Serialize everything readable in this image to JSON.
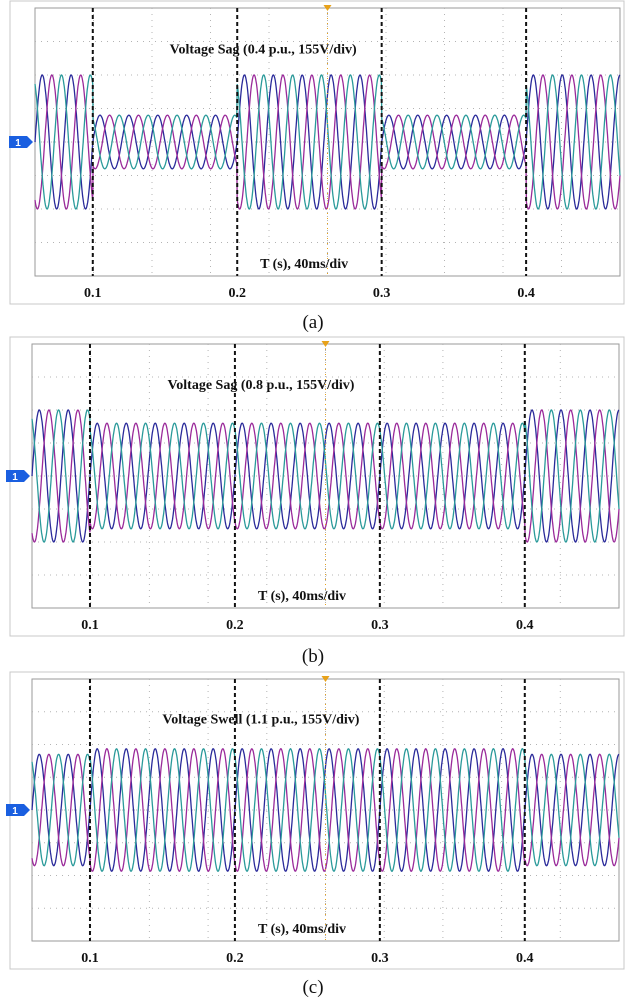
{
  "colors": {
    "phase_a": "#2a2a9a",
    "phase_b": "#9a2a9a",
    "phase_c": "#2a9a9a",
    "marker": "#1a5fe0",
    "trigger": "#e8a21a",
    "grid": "#b4b4b4",
    "frame": "#c8c8c8"
  },
  "chart_data": [
    {
      "type": "line",
      "caption": "(a)",
      "title": "Voltage Sag (0.4 p.u., 155V/div)",
      "xlabel": "T (s), 40ms/div",
      "ylabel": "",
      "x_ticks": [
        "0.1",
        "0.2",
        "0.3",
        "0.4"
      ],
      "xlim": [
        0.06,
        0.465
      ],
      "ylim": [
        -4,
        4
      ],
      "channel_marker": "1",
      "event_markers_s": [
        0.1,
        0.2,
        0.3,
        0.4
      ],
      "event_windows": [
        [
          0.1,
          0.2
        ],
        [
          0.3,
          0.4
        ]
      ],
      "nominal_amplitude_div": 2.0,
      "event_magnitude_pu": 0.4,
      "frequency_hz": 50,
      "series": [
        {
          "phase_deg": 0
        },
        {
          "phase_deg": -120
        },
        {
          "phase_deg": 120
        }
      ]
    },
    {
      "type": "line",
      "caption": "(b)",
      "title": "Voltage Sag (0.8 p.u., 155V/div)",
      "xlabel": "T (s), 40ms/div",
      "ylabel": "",
      "x_ticks": [
        "0.1",
        "0.2",
        "0.3",
        "0.4"
      ],
      "xlim": [
        0.06,
        0.465
      ],
      "ylim": [
        -4,
        4
      ],
      "channel_marker": "1",
      "event_markers_s": [
        0.1,
        0.2,
        0.3,
        0.4
      ],
      "event_windows": [
        [
          0.1,
          0.4
        ]
      ],
      "nominal_amplitude_div": 2.0,
      "event_magnitude_pu": 0.8,
      "frequency_hz": 50,
      "series": [
        {
          "phase_deg": 0
        },
        {
          "phase_deg": -120
        },
        {
          "phase_deg": 120
        }
      ]
    },
    {
      "type": "line",
      "caption": "(c)",
      "title": "Voltage Swell (1.1 p.u., 155V/div)",
      "xlabel": "T (s), 40ms/div",
      "ylabel": "",
      "x_ticks": [
        "0.1",
        "0.2",
        "0.3",
        "0.4"
      ],
      "xlim": [
        0.06,
        0.465
      ],
      "ylim": [
        -4,
        4
      ],
      "channel_marker": "1",
      "event_markers_s": [
        0.1,
        0.2,
        0.3,
        0.4
      ],
      "event_windows": [
        [
          0.1,
          0.4
        ]
      ],
      "nominal_amplitude_div": 1.7,
      "event_magnitude_pu": 1.1,
      "frequency_hz": 50,
      "series": [
        {
          "phase_deg": 0
        },
        {
          "phase_deg": -120
        },
        {
          "phase_deg": 120
        }
      ]
    }
  ]
}
